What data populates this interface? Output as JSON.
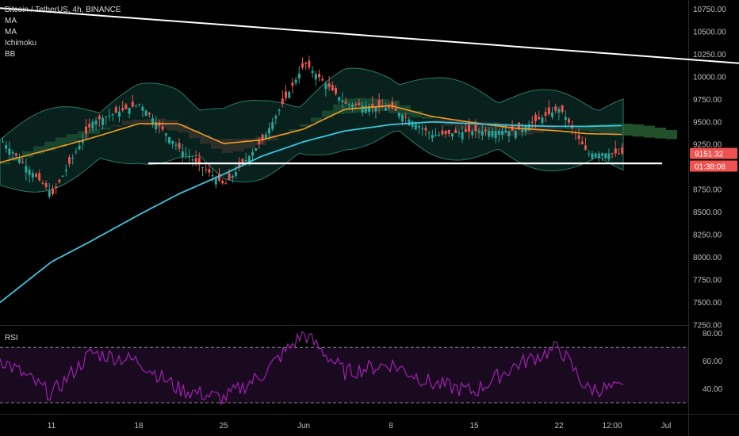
{
  "header": {
    "symbol": "Bitcoin / TetherUS, 4h, BINANCE",
    "indicators": [
      "MA",
      "MA",
      "Ichimoku",
      "BB"
    ]
  },
  "rsi_pane": {
    "label": "RSI"
  },
  "price_tags": {
    "last_price": "9151.32",
    "countdown": "01:38:08"
  },
  "colors": {
    "up": "#26a69a",
    "down": "#ef5350",
    "ma_fast": "#f59a23",
    "ma_slow": "#3cc5e0",
    "cloud_bull": "#2e6b3a",
    "cloud_bear": "#6b2a2a",
    "bb_fill": "#0f3d33",
    "rsi": "#a020b0",
    "trendline": "#ffffff",
    "tag_bg": "#ef5350"
  },
  "chart_data": [
    {
      "type": "candlestick",
      "title": "Bitcoin / TetherUS, 4h, BINANCE",
      "y_ticks": [
        "10750.00",
        "10500.00",
        "10250.00",
        "10000.00",
        "9750.00",
        "9500.00",
        "9250.00",
        "9000.00",
        "8750.00",
        "8500.00",
        "8250.00",
        "8000.00",
        "7750.00",
        "7500.00",
        "7250.00"
      ],
      "ylim": [
        7250,
        10850
      ],
      "x_ticks": [
        "11",
        "18",
        "25",
        "Jun",
        "8",
        "15",
        "22",
        "12:00",
        "Jul"
      ],
      "last_price": 9151.32,
      "series": [
        {
          "name": "close",
          "x": [
            "May 07",
            "May 11",
            "May 14",
            "May 18",
            "May 21",
            "May 25",
            "May 28",
            "Jun 01",
            "Jun 04",
            "Jun 08",
            "Jun 11",
            "Jun 15",
            "Jun 18",
            "Jun 22",
            "Jun 24",
            "Jun 26"
          ],
          "values": [
            9300,
            8700,
            9500,
            9700,
            9200,
            8800,
            9300,
            10150,
            9700,
            9650,
            9350,
            9400,
            9400,
            9650,
            9150,
            9151
          ]
        },
        {
          "name": "MA",
          "x": [
            "May 07",
            "May 11",
            "May 14",
            "May 18",
            "May 21",
            "May 25",
            "May 28",
            "Jun 01",
            "Jun 04",
            "Jun 08",
            "Jun 11",
            "Jun 15",
            "Jun 18",
            "Jun 22",
            "Jun 24",
            "Jun 26"
          ],
          "values": [
            9050,
            9200,
            9320,
            9480,
            9480,
            9260,
            9300,
            9420,
            9640,
            9680,
            9560,
            9490,
            9430,
            9400,
            9370,
            9360
          ]
        },
        {
          "name": "MA",
          "x": [
            "May 07",
            "May 11",
            "May 14",
            "May 18",
            "May 21",
            "May 25",
            "May 28",
            "Jun 01",
            "Jun 04",
            "Jun 08",
            "Jun 11",
            "Jun 15",
            "Jun 18",
            "Jun 22",
            "Jun 24",
            "Jun 26"
          ],
          "values": [
            7500,
            7950,
            8180,
            8470,
            8700,
            8920,
            9120,
            9280,
            9400,
            9470,
            9500,
            9480,
            9460,
            9450,
            9450,
            9460
          ]
        }
      ],
      "annotations": [
        {
          "type": "trendline",
          "from": [
            "May 07",
            10760
          ],
          "to": [
            "Jul 01",
            10150
          ]
        },
        {
          "type": "horizontal_line",
          "from": "May 18",
          "to": "Jun 29",
          "value": 9040
        }
      ]
    },
    {
      "type": "line",
      "title": "RSI",
      "y_ticks": [
        "80.00",
        "60.00",
        "40.00"
      ],
      "ylim": [
        22,
        85
      ],
      "bands": [
        70,
        30
      ],
      "series": [
        {
          "name": "RSI",
          "x": [
            "May 07",
            "May 11",
            "May 14",
            "May 18",
            "May 21",
            "May 25",
            "May 28",
            "Jun 01",
            "Jun 04",
            "Jun 08",
            "Jun 11",
            "Jun 15",
            "Jun 18",
            "Jun 22",
            "Jun 24",
            "Jun 26"
          ],
          "values": [
            62,
            36,
            66,
            60,
            40,
            33,
            50,
            80,
            52,
            58,
            44,
            38,
            57,
            70,
            40,
            40
          ]
        }
      ]
    }
  ]
}
